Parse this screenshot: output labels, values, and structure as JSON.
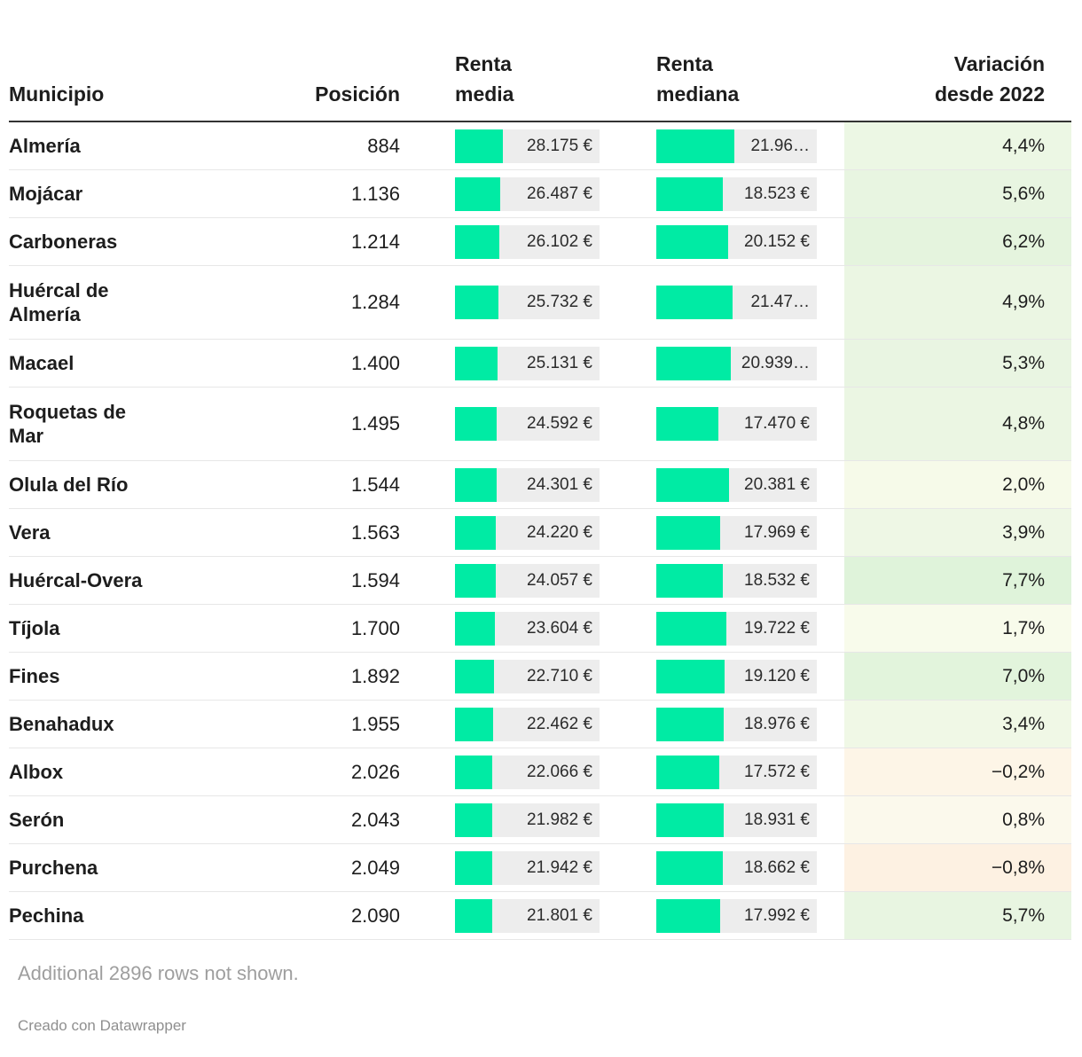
{
  "header": {
    "municipio": "Municipio",
    "posicion": "Posición",
    "renta_media": "Renta\nmedia",
    "renta_mediana": "Renta\nmediana",
    "variacion": "Variación\ndesde 2022"
  },
  "colors": {
    "accent_bar": "#00eba4",
    "bar_track": "#ededed",
    "text": "#1d1d1d",
    "header_rule": "#333333",
    "row_rule": "#e7e7e7"
  },
  "bar_config": {
    "media_axis_max": 85000,
    "mediana_axis_max": 45000
  },
  "rows": [
    {
      "name": "Almería",
      "position": "884",
      "media_label": "28.175 €",
      "media_value": 28175,
      "mediana_label": "21.96…",
      "mediana_value": 21965,
      "variation": "4,4%",
      "variation_bg": "#ecf7e4"
    },
    {
      "name": "Mojácar",
      "position": "1.136",
      "media_label": "26.487 €",
      "media_value": 26487,
      "mediana_label": "18.523 €",
      "mediana_value": 18523,
      "variation": "5,6%",
      "variation_bg": "#e8f5e1"
    },
    {
      "name": "Carboneras",
      "position": "1.214",
      "media_label": "26.102 €",
      "media_value": 26102,
      "mediana_label": "20.152 €",
      "mediana_value": 20152,
      "variation": "6,2%",
      "variation_bg": "#e5f4de"
    },
    {
      "name": "Huércal de\nAlmería",
      "position": "1.284",
      "media_label": "25.732 €",
      "media_value": 25732,
      "mediana_label": "21.47…",
      "mediana_value": 21475,
      "variation": "4,9%",
      "variation_bg": "#ebf6e3"
    },
    {
      "name": "Macael",
      "position": "1.400",
      "media_label": "25.131 €",
      "media_value": 25131,
      "mediana_label": "20.939…",
      "mediana_value": 20939,
      "variation": "5,3%",
      "variation_bg": "#e9f5e2"
    },
    {
      "name": "Roquetas de\nMar",
      "position": "1.495",
      "media_label": "24.592 €",
      "media_value": 24592,
      "mediana_label": "17.470 €",
      "mediana_value": 17470,
      "variation": "4,8%",
      "variation_bg": "#ebf6e3"
    },
    {
      "name": "Olula del Río",
      "position": "1.544",
      "media_label": "24.301 €",
      "media_value": 24301,
      "mediana_label": "20.381 €",
      "mediana_value": 20381,
      "variation": "2,0%",
      "variation_bg": "#f6fae9"
    },
    {
      "name": "Vera",
      "position": "1.563",
      "media_label": "24.220 €",
      "media_value": 24220,
      "mediana_label": "17.969 €",
      "mediana_value": 17969,
      "variation": "3,9%",
      "variation_bg": "#eef7e5"
    },
    {
      "name": "Huércal-Overa",
      "position": "1.594",
      "media_label": "24.057 €",
      "media_value": 24057,
      "mediana_label": "18.532 €",
      "mediana_value": 18532,
      "variation": "7,7%",
      "variation_bg": "#dff3da"
    },
    {
      "name": "Tíjola",
      "position": "1.700",
      "media_label": "23.604 €",
      "media_value": 23604,
      "mediana_label": "19.722 €",
      "mediana_value": 19722,
      "variation": "1,7%",
      "variation_bg": "#f8fbeb"
    },
    {
      "name": "Fines",
      "position": "1.892",
      "media_label": "22.710 €",
      "media_value": 22710,
      "mediana_label": "19.120 €",
      "mediana_value": 19120,
      "variation": "7,0%",
      "variation_bg": "#e2f4dc"
    },
    {
      "name": "Benahadux",
      "position": "1.955",
      "media_label": "22.462 €",
      "media_value": 22462,
      "mediana_label": "18.976 €",
      "mediana_value": 18976,
      "variation": "3,4%",
      "variation_bg": "#f0f8e6"
    },
    {
      "name": "Albox",
      "position": "2.026",
      "media_label": "22.066 €",
      "media_value": 22066,
      "mediana_label": "17.572 €",
      "mediana_value": 17572,
      "variation": "−0,2%",
      "variation_bg": "#fdf5e7"
    },
    {
      "name": "Serón",
      "position": "2.043",
      "media_label": "21.982 €",
      "media_value": 21982,
      "mediana_label": "18.931 €",
      "mediana_value": 18931,
      "variation": "0,8%",
      "variation_bg": "#fbf9ec"
    },
    {
      "name": "Purchena",
      "position": "2.049",
      "media_label": "21.942 €",
      "media_value": 21942,
      "mediana_label": "18.662 €",
      "mediana_value": 18662,
      "variation": "−0,8%",
      "variation_bg": "#fdf1e2"
    },
    {
      "name": "Pechina",
      "position": "2.090",
      "media_label": "21.801 €",
      "media_value": 21801,
      "mediana_label": "17.992 €",
      "mediana_value": 17992,
      "variation": "5,7%",
      "variation_bg": "#e8f5e1"
    }
  ],
  "footer": {
    "note": "Additional 2896 rows not shown.",
    "credit": "Creado con Datawrapper"
  },
  "chart_data": {
    "type": "table",
    "title": "",
    "columns": [
      "Municipio",
      "Posición",
      "Renta media",
      "Renta mediana",
      "Variación desde 2022"
    ],
    "bar_columns": [
      "Renta media",
      "Renta mediana"
    ],
    "bar_axis_max": {
      "renta_media": 85000,
      "renta_mediana": 45000
    },
    "rows": [
      {
        "municipio": "Almería",
        "posicion": 884,
        "renta_media_eur": 28175,
        "renta_mediana_display": "21.96…",
        "renta_mediana_eur": 21965,
        "variacion_desde_2022_pct": 4.4
      },
      {
        "municipio": "Mojácar",
        "posicion": 1136,
        "renta_media_eur": 26487,
        "renta_mediana_display": "18.523 €",
        "renta_mediana_eur": 18523,
        "variacion_desde_2022_pct": 5.6
      },
      {
        "municipio": "Carboneras",
        "posicion": 1214,
        "renta_media_eur": 26102,
        "renta_mediana_display": "20.152 €",
        "renta_mediana_eur": 20152,
        "variacion_desde_2022_pct": 6.2
      },
      {
        "municipio": "Huércal de Almería",
        "posicion": 1284,
        "renta_media_eur": 25732,
        "renta_mediana_display": "21.47…",
        "renta_mediana_eur": 21475,
        "variacion_desde_2022_pct": 4.9
      },
      {
        "municipio": "Macael",
        "posicion": 1400,
        "renta_media_eur": 25131,
        "renta_mediana_display": "20.939…",
        "renta_mediana_eur": 20939,
        "variacion_desde_2022_pct": 5.3
      },
      {
        "municipio": "Roquetas de Mar",
        "posicion": 1495,
        "renta_media_eur": 24592,
        "renta_mediana_display": "17.470 €",
        "renta_mediana_eur": 17470,
        "variacion_desde_2022_pct": 4.8
      },
      {
        "municipio": "Olula del Río",
        "posicion": 1544,
        "renta_media_eur": 24301,
        "renta_mediana_display": "20.381 €",
        "renta_mediana_eur": 20381,
        "variacion_desde_2022_pct": 2.0
      },
      {
        "municipio": "Vera",
        "posicion": 1563,
        "renta_media_eur": 24220,
        "renta_mediana_display": "17.969 €",
        "renta_mediana_eur": 17969,
        "variacion_desde_2022_pct": 3.9
      },
      {
        "municipio": "Huércal-Overa",
        "posicion": 1594,
        "renta_media_eur": 24057,
        "renta_mediana_display": "18.532 €",
        "renta_mediana_eur": 18532,
        "variacion_desde_2022_pct": 7.7
      },
      {
        "municipio": "Tíjola",
        "posicion": 1700,
        "renta_media_eur": 23604,
        "renta_mediana_display": "19.722 €",
        "renta_mediana_eur": 19722,
        "variacion_desde_2022_pct": 1.7
      },
      {
        "municipio": "Fines",
        "posicion": 1892,
        "renta_media_eur": 22710,
        "renta_mediana_display": "19.120 €",
        "renta_mediana_eur": 19120,
        "variacion_desde_2022_pct": 7.0
      },
      {
        "municipio": "Benahadux",
        "posicion": 1955,
        "renta_media_eur": 22462,
        "renta_mediana_display": "18.976 €",
        "renta_mediana_eur": 18976,
        "variacion_desde_2022_pct": 3.4
      },
      {
        "municipio": "Albox",
        "posicion": 2026,
        "renta_media_eur": 22066,
        "renta_mediana_display": "17.572 €",
        "renta_mediana_eur": 17572,
        "variacion_desde_2022_pct": -0.2
      },
      {
        "municipio": "Serón",
        "posicion": 2043,
        "renta_media_eur": 21982,
        "renta_mediana_display": "18.931 €",
        "renta_mediana_eur": 18931,
        "variacion_desde_2022_pct": 0.8
      },
      {
        "municipio": "Purchena",
        "posicion": 2049,
        "renta_media_eur": 21942,
        "renta_mediana_display": "18.662 €",
        "renta_mediana_eur": 18662,
        "variacion_desde_2022_pct": -0.8
      },
      {
        "municipio": "Pechina",
        "posicion": 2090,
        "renta_media_eur": 21801,
        "renta_mediana_display": "17.992 €",
        "renta_mediana_eur": 17992,
        "variacion_desde_2022_pct": 5.7
      }
    ]
  }
}
